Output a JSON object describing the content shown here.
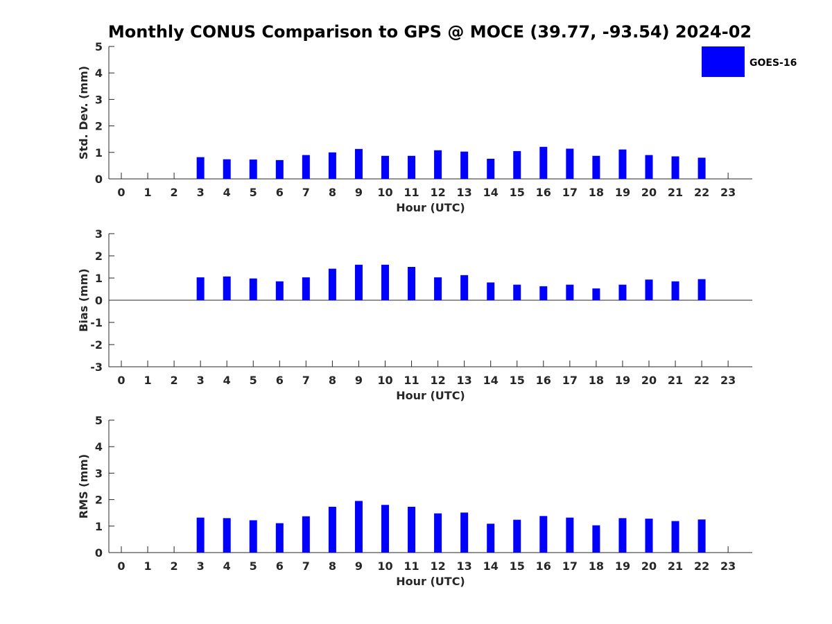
{
  "title": "Monthly CONUS Comparison to GPS @ MOCE (39.77, -93.54) 2024-02",
  "legend": {
    "label": "GOES-16",
    "color": "#0000ff"
  },
  "chart_data": [
    {
      "type": "bar",
      "xlabel": "Hour (UTC)",
      "ylabel": "Std. Dev. (mm)",
      "ylim": [
        0,
        5
      ],
      "yticks": [
        0,
        1,
        2,
        3,
        4,
        5
      ],
      "categories": [
        "0",
        "1",
        "2",
        "3",
        "4",
        "5",
        "6",
        "7",
        "8",
        "9",
        "10",
        "11",
        "12",
        "13",
        "14",
        "15",
        "16",
        "17",
        "18",
        "19",
        "20",
        "21",
        "22",
        "23"
      ],
      "series": [
        {
          "name": "GOES-16",
          "values": [
            null,
            null,
            null,
            0.82,
            0.74,
            0.73,
            0.71,
            0.9,
            1.0,
            1.13,
            0.87,
            0.87,
            1.08,
            1.03,
            0.76,
            1.05,
            1.21,
            1.14,
            0.87,
            1.11,
            0.9,
            0.85,
            0.8,
            null
          ]
        }
      ]
    },
    {
      "type": "bar",
      "xlabel": "Hour (UTC)",
      "ylabel": "Bias (mm)",
      "ylim": [
        -3,
        3
      ],
      "yticks": [
        -3,
        -2,
        -1,
        0,
        1,
        2,
        3
      ],
      "categories": [
        "0",
        "1",
        "2",
        "3",
        "4",
        "5",
        "6",
        "7",
        "8",
        "9",
        "10",
        "11",
        "12",
        "13",
        "14",
        "15",
        "16",
        "17",
        "18",
        "19",
        "20",
        "21",
        "22",
        "23"
      ],
      "series": [
        {
          "name": "GOES-16",
          "values": [
            null,
            null,
            null,
            1.03,
            1.07,
            0.98,
            0.85,
            1.03,
            1.42,
            1.6,
            1.6,
            1.5,
            1.03,
            1.13,
            0.8,
            0.7,
            0.63,
            0.7,
            0.53,
            0.7,
            0.93,
            0.85,
            0.95,
            null
          ]
        }
      ]
    },
    {
      "type": "bar",
      "xlabel": "Hour (UTC)",
      "ylabel": "RMS (mm)",
      "ylim": [
        0,
        5
      ],
      "yticks": [
        0,
        1,
        2,
        3,
        4,
        5
      ],
      "categories": [
        "0",
        "1",
        "2",
        "3",
        "4",
        "5",
        "6",
        "7",
        "8",
        "9",
        "10",
        "11",
        "12",
        "13",
        "14",
        "15",
        "16",
        "17",
        "18",
        "19",
        "20",
        "21",
        "22",
        "23"
      ],
      "series": [
        {
          "name": "GOES-16",
          "values": [
            null,
            null,
            null,
            1.32,
            1.3,
            1.22,
            1.11,
            1.37,
            1.73,
            1.95,
            1.8,
            1.73,
            1.48,
            1.51,
            1.09,
            1.24,
            1.38,
            1.32,
            1.03,
            1.3,
            1.28,
            1.19,
            1.25,
            null
          ]
        }
      ]
    }
  ]
}
